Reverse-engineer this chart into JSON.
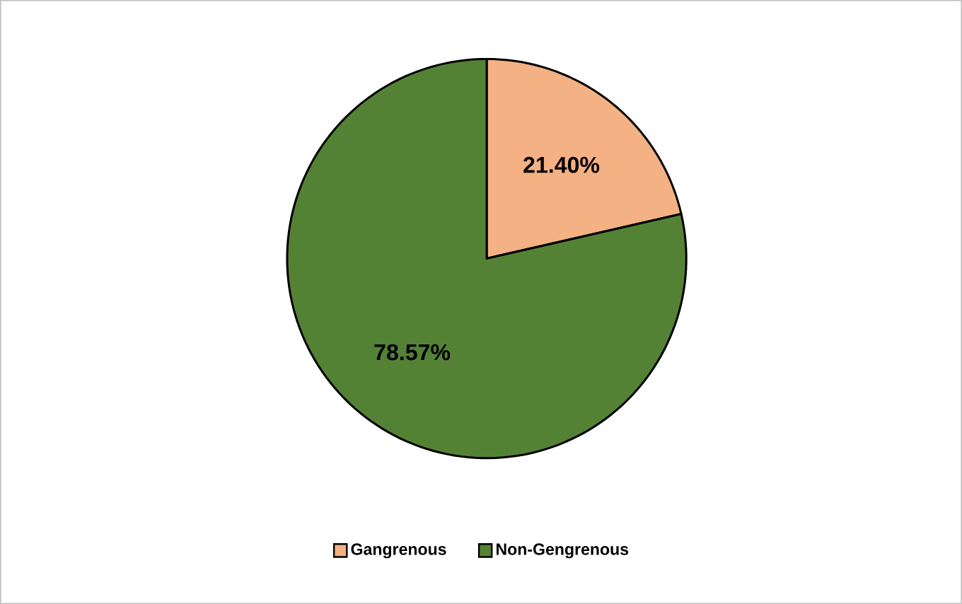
{
  "chart_data": {
    "type": "pie",
    "categories": [
      "Gangrenous",
      "Non-Gengrenous"
    ],
    "values": [
      21.4,
      78.57
    ],
    "colors": [
      "#f4b183",
      "#548235"
    ],
    "value_labels": [
      "21.40%",
      "78.57%"
    ],
    "legend": "bottom"
  }
}
